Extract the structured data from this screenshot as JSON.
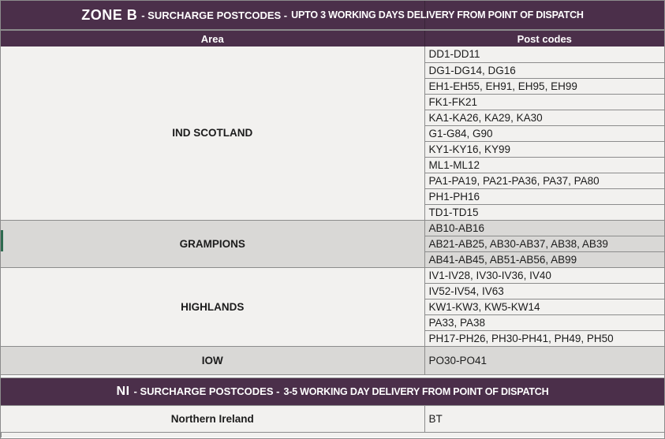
{
  "colors": {
    "header_bg": "#4b2f4a",
    "header_text": "#ffffff",
    "row_light_bg": "#f2f1ef",
    "row_gray_bg": "#d9d8d6",
    "grid_line": "#8c8c8c",
    "text": "#1c1c1c",
    "green_accent": "#2e6b50"
  },
  "zone_b": {
    "header": {
      "zone_label": "ZONE B",
      "mid_label": "- SURCHARGE POSTCODES -",
      "detail_label": "UPTO 3 WORKING DAYS DELIVERY FROM POINT OF DISPATCH"
    },
    "columns": {
      "area": "Area",
      "postcodes": "Post codes"
    },
    "groups": [
      {
        "area": "IND SCOTLAND",
        "rows": [
          "DD1-DD11",
          "DG1-DG14, DG16",
          "EH1-EH55, EH91, EH95, EH99",
          "FK1-FK21",
          "KA1-KA26, KA29, KA30",
          "G1-G84, G90",
          "KY1-KY16, KY99",
          "ML1-ML12",
          "PA1-PA19, PA21-PA36, PA37, PA80",
          "PH1-PH16",
          "TD1-TD15"
        ]
      },
      {
        "area": "GRAMPIONS",
        "rows": [
          "AB10-AB16",
          "AB21-AB25, AB30-AB37, AB38, AB39",
          "AB41-AB45, AB51-AB56, AB99"
        ]
      },
      {
        "area": "HIGHLANDS",
        "rows": [
          "IV1-IV28, IV30-IV36, IV40",
          "IV52-IV54, IV63",
          "KW1-KW3, KW5-KW14",
          "PA33, PA38",
          "PH17-PH26, PH30-PH41, PH49, PH50"
        ]
      },
      {
        "area": "IOW",
        "rows": [
          "PO30-PO41"
        ]
      }
    ]
  },
  "ni": {
    "header": {
      "zone_label": "NI",
      "mid_label": "-  SURCHARGE POSTCODES -",
      "detail_label": "3-5 WORKING DAY DELIVERY FROM POINT OF DISPATCH"
    },
    "row": {
      "area": "Northern Ireland",
      "postcodes": "BT"
    }
  }
}
